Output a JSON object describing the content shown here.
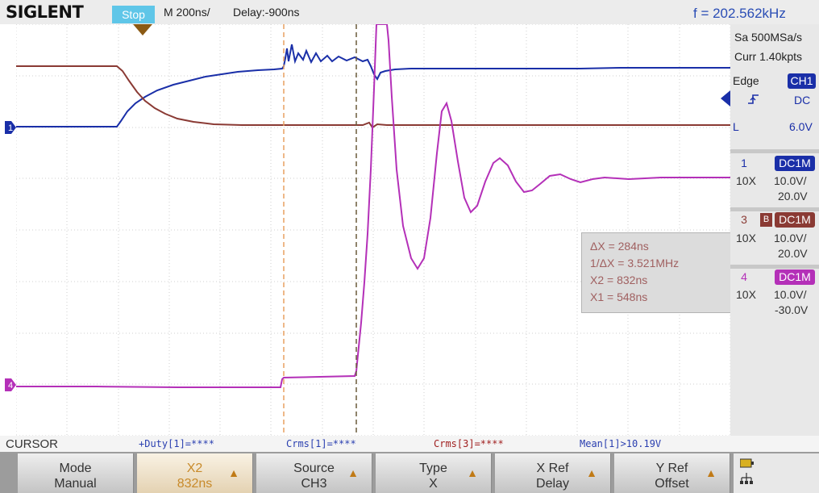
{
  "header": {
    "brand": "SIGLENT",
    "run_status": "Stop",
    "timebase": "M 200ns/",
    "delay": "Delay:-900ns",
    "frequency": "f = 202.562kHz"
  },
  "side_panel": {
    "sample_rate": "Sa 500MSa/s",
    "curr_points": "Curr 1.40kpts",
    "trigger": {
      "type": "Edge",
      "source": "CH1",
      "coupling": "DC",
      "level_prefix": "L",
      "level": "6.0V"
    },
    "channels": [
      {
        "number": "1",
        "bandwidth_icon": "",
        "coupling": "DC1M",
        "probe": "10X",
        "scale": "10.0V/",
        "offset": "20.0V",
        "color": "#1a2fa8"
      },
      {
        "number": "3",
        "bandwidth_icon": "B",
        "coupling": "DC1M",
        "probe": "10X",
        "scale": "10.0V/",
        "offset": "20.0V",
        "color": "#8a3a34"
      },
      {
        "number": "4",
        "bandwidth_icon": "",
        "coupling": "DC1M",
        "probe": "10X",
        "scale": "10.0V/",
        "offset": "-30.0V",
        "color": "#b430b8"
      }
    ]
  },
  "cursor_readout": {
    "delta_x": "ΔX = 284ns",
    "inverse_delta_x": "1/ΔX = 3.521MHz",
    "x2": "X2 = 832ns",
    "x1": "X1 = 548ns"
  },
  "channel_markers": {
    "ch1": "1",
    "ch4": "4"
  },
  "measurements": {
    "menu_title": "CURSOR",
    "items": [
      {
        "text": "+Duty[1]=****",
        "color": "#2a3fb0"
      },
      {
        "text": "Crms[1]=****",
        "color": "#2a3fb0"
      },
      {
        "text": "Crms[3]=****",
        "color": "#a02020"
      },
      {
        "text": "Mean[1]>10.19V",
        "color": "#2a3fb0"
      }
    ]
  },
  "soft_menu": {
    "mode": {
      "label": "Mode",
      "value": "Manual"
    },
    "x2": {
      "label": "X2",
      "value": "832ns"
    },
    "source": {
      "label": "Source",
      "value": "CH3"
    },
    "type": {
      "label": "Type",
      "value": "X"
    },
    "x_ref": {
      "label": "X Ref",
      "value": "Delay"
    },
    "y_ref": {
      "label": "Y Ref",
      "value": "Offset"
    }
  },
  "colors": {
    "ch1": "#1a2fa8",
    "ch3": "#8a3a34",
    "ch4": "#b430b8",
    "cursor_x1": "#e8a060",
    "cursor_x2": "#6a5a3a",
    "accent": "#5fc6e8"
  }
}
